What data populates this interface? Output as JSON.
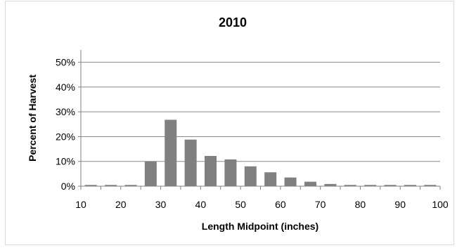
{
  "chart_data": {
    "type": "bar",
    "title": "2010",
    "xlabel": "Length Midpoint  (inches)",
    "ylabel": "Percent of Harvest",
    "x": [
      10,
      15,
      20,
      25,
      30,
      35,
      40,
      45,
      50,
      55,
      60,
      65,
      70,
      75,
      80,
      85,
      90,
      95
    ],
    "values": [
      0.5,
      0.5,
      0.5,
      10,
      26.8,
      18.8,
      12.2,
      10.8,
      8,
      5.6,
      3.5,
      1.8,
      0.9,
      0.5,
      0.5,
      0.5,
      0.5,
      0.5
    ],
    "xlim": [
      10,
      100
    ],
    "ylim": [
      0,
      55
    ],
    "x_ticks": [
      "10",
      "20",
      "30",
      "40",
      "50",
      "60",
      "70",
      "80",
      "90",
      "100"
    ],
    "y_ticks": [
      "0%",
      "10%",
      "20%",
      "30%",
      "40%",
      "50%"
    ],
    "grid": true,
    "legend": "none",
    "colors": {
      "bar": "#808080",
      "grid": "#888888",
      "axis": "#808080",
      "text": "#000000"
    }
  }
}
